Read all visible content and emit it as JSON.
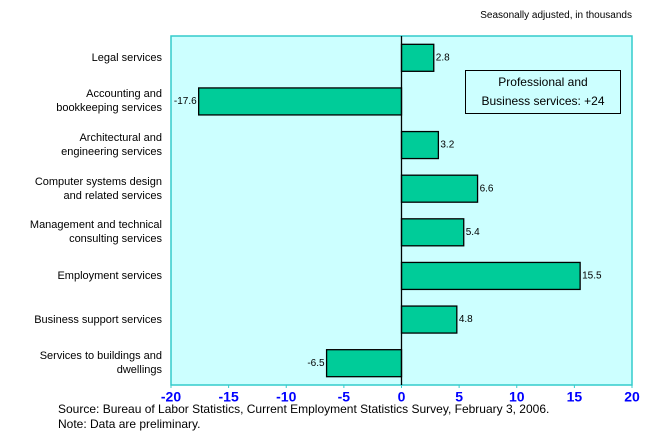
{
  "chart_data": {
    "type": "bar",
    "orientation": "horizontal",
    "subtitle": "Seasonally adjusted, in thousands",
    "categories": [
      "Legal services",
      "Accounting and\nbookkeeping services",
      "Architectural and\nengineering services",
      "Computer systems design\nand related services",
      "Management and technical\nconsulting services",
      "Employment services",
      "Business support services",
      "Services to buildings and\ndwellings"
    ],
    "values": [
      2.8,
      -17.6,
      3.2,
      6.6,
      5.4,
      15.5,
      4.8,
      -6.5
    ],
    "color": "#00cc99",
    "xlim": [
      -20,
      20
    ],
    "xticks": [
      -20,
      -15,
      -10,
      -5,
      0,
      5,
      10,
      15,
      20
    ],
    "annotation": "Professional and\nBusiness services: +24",
    "source": "Source:  Bureau of Labor Statistics, Current Employment Statistics Survey, February 3, 2006.",
    "note": "Note:  Data are preliminary."
  }
}
